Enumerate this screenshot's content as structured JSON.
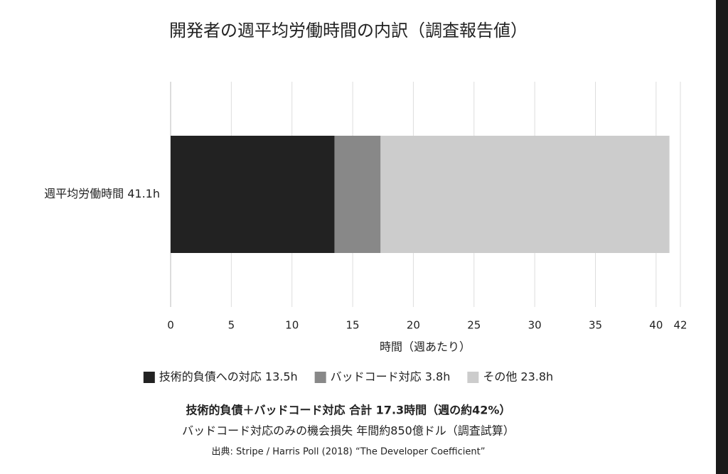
{
  "chart_data": {
    "type": "stacked-barh",
    "title": "開発者の週平均労働時間の内訳（調査報告値）",
    "categories": [
      "週平均労働時間 41.1h"
    ],
    "series": [
      {
        "name": "技術的負債への対応 13.5h",
        "color": "#222222",
        "values": [
          13.5
        ]
      },
      {
        "name": "バッドコード対応 3.8h",
        "color": "#888888",
        "values": [
          3.8
        ]
      },
      {
        "name": "その他 23.8h",
        "color": "#cccccc",
        "values": [
          23.8
        ]
      }
    ],
    "xlim": [
      0,
      42
    ],
    "xticks": [
      0,
      5,
      10,
      15,
      20,
      25,
      30,
      35,
      40,
      42
    ],
    "xlabel": "時間（週あたり）",
    "grid": true,
    "legend": "bottom",
    "annotations": [
      "技術的負債＋バッドコード対応 合計 17.3時間（週の約42%）",
      "バッドコード対応のみの機会損失 年間約850億ドル（調査試算）",
      "出典: Stripe / Harris Poll (2018) “The Developer Coefficient”"
    ]
  }
}
